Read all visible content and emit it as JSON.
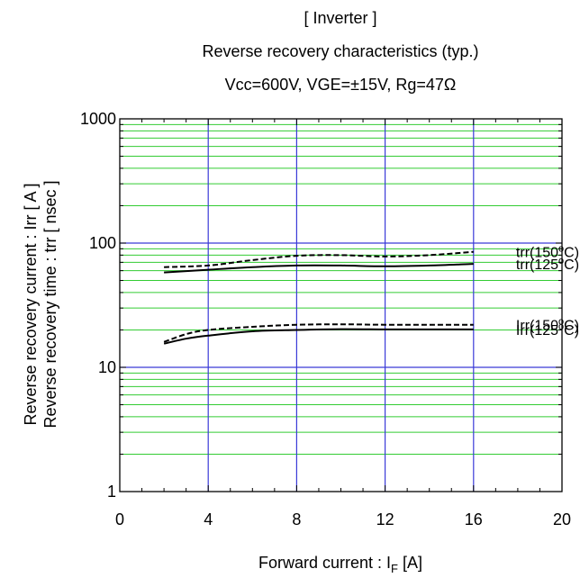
{
  "titles": {
    "line1": "[ Inverter ]",
    "line2": "Reverse recovery characteristics (typ.)",
    "line3": "Vcc=600V, VGE=±15V, Rg=47Ω"
  },
  "axes": {
    "ylabel1": "Reverse recovery current : Irr [ A ]",
    "ylabel2": "Reverse recovery time : trr [ nsec ]",
    "xlabel_main": "Forward current : I",
    "xlabel_sub": "F",
    "xlabel_unit": " [A]"
  },
  "colors": {
    "major_grid": "#3a3ad8",
    "minor_grid": "#33cc33",
    "line": "#000000"
  },
  "chart_data": {
    "type": "line",
    "title": "[ Inverter ] Reverse recovery characteristics (typ.) Vcc=600V, VGE=±15V, Rg=47Ω",
    "xlabel": "Forward current : IF [A]",
    "ylabel": "Reverse recovery current : Irr [ A ] / Reverse recovery time : trr [ nsec ]",
    "xlim": [
      0,
      20
    ],
    "ylim": [
      1,
      1000
    ],
    "yscale": "log",
    "grid": true,
    "x_ticks": [
      "0",
      "4",
      "8",
      "12",
      "16",
      "20"
    ],
    "y_ticks": [
      "1",
      "10",
      "100",
      "1000"
    ],
    "series": [
      {
        "name": "trr(150°C)",
        "style": "dashed",
        "x": [
          2,
          4,
          6,
          8,
          10,
          12,
          14,
          16
        ],
        "y": [
          64,
          66,
          73,
          79,
          80,
          78,
          80,
          85
        ]
      },
      {
        "name": "trr(125°C)",
        "style": "solid",
        "x": [
          2,
          4,
          6,
          8,
          10,
          12,
          14,
          16
        ],
        "y": [
          58,
          61,
          64,
          66,
          66,
          65,
          66,
          68
        ]
      },
      {
        "name": "Irr(150°C)",
        "style": "dashed",
        "x": [
          2,
          3,
          4,
          6,
          8,
          10,
          12,
          14,
          16
        ],
        "y": [
          16,
          18.5,
          20,
          21.2,
          22,
          22.2,
          22,
          22,
          22
        ]
      },
      {
        "name": "Irr(125°C)",
        "style": "solid",
        "x": [
          2,
          3,
          4,
          6,
          8,
          10,
          12,
          14,
          16
        ],
        "y": [
          15.5,
          17,
          18,
          19.5,
          20,
          20.3,
          20.2,
          20.2,
          20.2
        ]
      }
    ]
  }
}
